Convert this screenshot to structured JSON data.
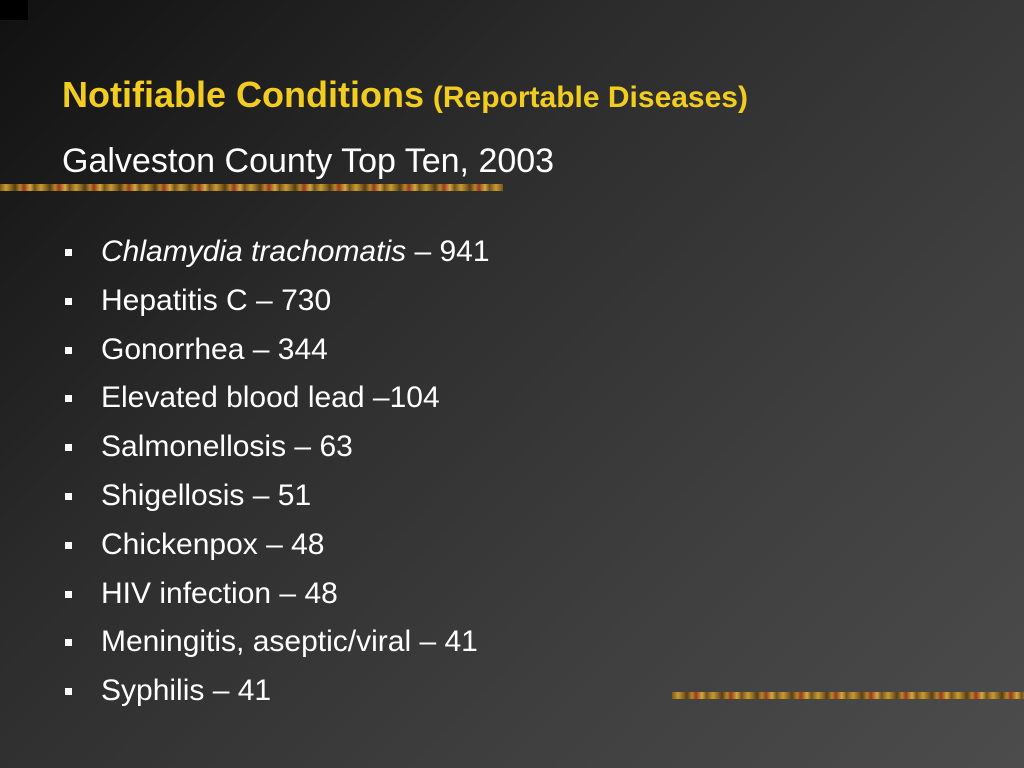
{
  "slide": {
    "title": "Notifiable Conditions",
    "title_parenthetical": "(Reportable Diseases)",
    "subtitle": "Galveston County Top Ten, 2003",
    "colors": {
      "title": "#f2cc1e",
      "text": "#ffffff",
      "background_dark": "#111111",
      "background_light": "#4c4c4c"
    },
    "items": [
      {
        "name": "Chlamydia trachomatis",
        "sep": " – ",
        "count": "941"
      },
      {
        "name": "Hepatitis C",
        "sep": " – ",
        "count": "730"
      },
      {
        "name": "Gonorrhea",
        "sep": " – ",
        "count": "344"
      },
      {
        "name": "Elevated blood lead",
        "sep": " –",
        "count": "104"
      },
      {
        "name": "Salmonellosis",
        "sep": " – ",
        "count": "63"
      },
      {
        "name": "Shigellosis",
        "sep": " – ",
        "count": "51"
      },
      {
        "name": "Chickenpox",
        "sep": " – ",
        "count": "48"
      },
      {
        "name": "HIV infection",
        "sep": " – ",
        "count": "48"
      },
      {
        "name": "Meningitis, aseptic/viral",
        "sep": " – ",
        "count": "41"
      },
      {
        "name": "Syphilis",
        "sep": " – ",
        "count": "41"
      }
    ]
  }
}
